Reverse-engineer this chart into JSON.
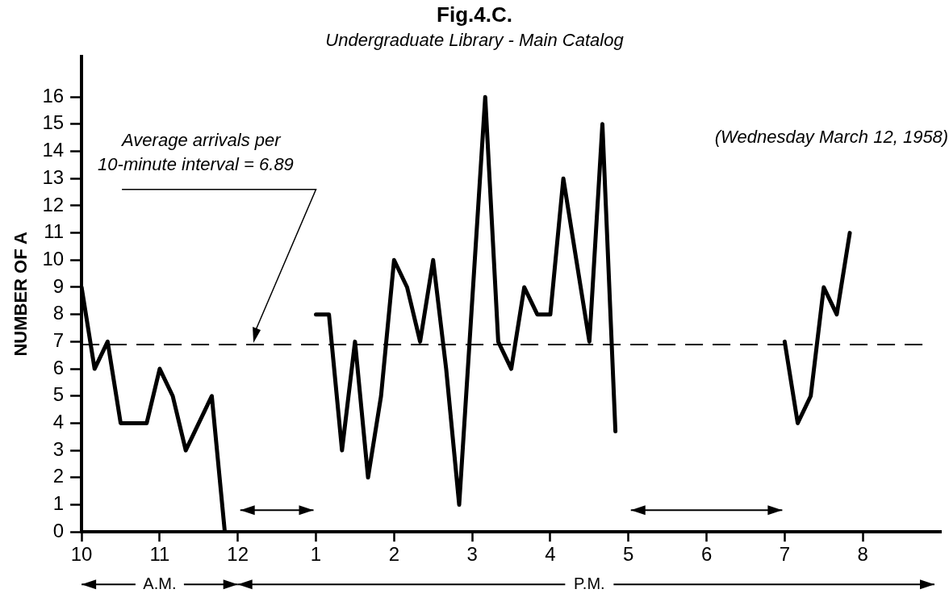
{
  "chart_data": {
    "type": "line",
    "title": "Fig.4.C.",
    "subtitle": "Undergraduate Library - Main Catalog",
    "ylabel": "NUMBER OF A",
    "series": [
      {
        "color": "#000000",
        "x": [
          "1958-03-12T10:00",
          "1958-03-12T10:10",
          "1958-03-12T10:20",
          "1958-03-12T10:30",
          "1958-03-12T10:50",
          "1958-03-12T11:00",
          "1958-03-12T11:10",
          "1958-03-12T11:20",
          "1958-03-12T11:40",
          "1958-03-12T11:50"
        ],
        "values": [
          9,
          6,
          7,
          4,
          4,
          6,
          5,
          3,
          5,
          0
        ]
      },
      {
        "color": "#000000",
        "x": [
          "1958-03-12T13:00",
          "1958-03-12T13:10",
          "1958-03-12T13:20",
          "1958-03-12T13:30",
          "1958-03-12T13:40",
          "1958-03-12T13:50",
          "1958-03-12T14:00",
          "1958-03-12T14:10",
          "1958-03-12T14:20",
          "1958-03-12T14:30",
          "1958-03-12T14:40",
          "1958-03-12T14:50",
          "1958-03-12T15:10",
          "1958-03-12T15:20",
          "1958-03-12T15:30",
          "1958-03-12T15:40",
          "1958-03-12T15:50",
          "1958-03-12T16:00",
          "1958-03-12T16:10",
          "1958-03-12T16:20",
          "1958-03-12T16:30",
          "1958-03-12T16:40",
          "1958-03-12T16:50"
        ],
        "values": [
          8,
          8,
          3,
          7,
          2,
          5,
          10,
          9,
          7,
          10,
          6,
          1,
          16,
          7,
          6,
          9,
          8,
          8,
          13,
          10,
          7,
          15,
          3.7
        ]
      },
      {
        "color": "#000000",
        "x": [
          "1958-03-12T19:00",
          "1958-03-12T19:10",
          "1958-03-12T19:20",
          "1958-03-12T19:30",
          "1958-03-12T19:40",
          "1958-03-12T19:50"
        ],
        "values": [
          7,
          4,
          5,
          9,
          8,
          11
        ]
      }
    ],
    "xlim": [
      "1958-03-12T10:00",
      "1958-03-12T21:00"
    ],
    "xticks": [
      {
        "value": "1958-03-12T10:00",
        "label": "10"
      },
      {
        "value": "1958-03-12T11:00",
        "label": "11"
      },
      {
        "value": "1958-03-12T12:00",
        "label": "12"
      },
      {
        "value": "1958-03-12T13:00",
        "label": "1"
      },
      {
        "value": "1958-03-12T14:00",
        "label": "2"
      },
      {
        "value": "1958-03-12T15:00",
        "label": "3"
      },
      {
        "value": "1958-03-12T16:00",
        "label": "4"
      },
      {
        "value": "1958-03-12T17:00",
        "label": "5"
      },
      {
        "value": "1958-03-12T18:00",
        "label": "6"
      },
      {
        "value": "1958-03-12T19:00",
        "label": "7"
      },
      {
        "value": "1958-03-12T20:00",
        "label": "8"
      }
    ],
    "ylim": [
      0,
      17.5
    ],
    "yticks": [
      0,
      1,
      2,
      3,
      4,
      5,
      6,
      7,
      8,
      9,
      10,
      11,
      12,
      13,
      14,
      15,
      16
    ],
    "ref_lines": [
      {
        "axis": "y",
        "value": 6.89,
        "label": "Average arrivals per 10-minute interval = 6.89",
        "line_style": "dashed",
        "color": "#000000"
      }
    ],
    "annotations": [
      "(Wednesday March 12, 1958)",
      "A.M.",
      "P.M."
    ],
    "grid": false,
    "legend": false,
    "marker": "none",
    "line_style": "solid"
  }
}
